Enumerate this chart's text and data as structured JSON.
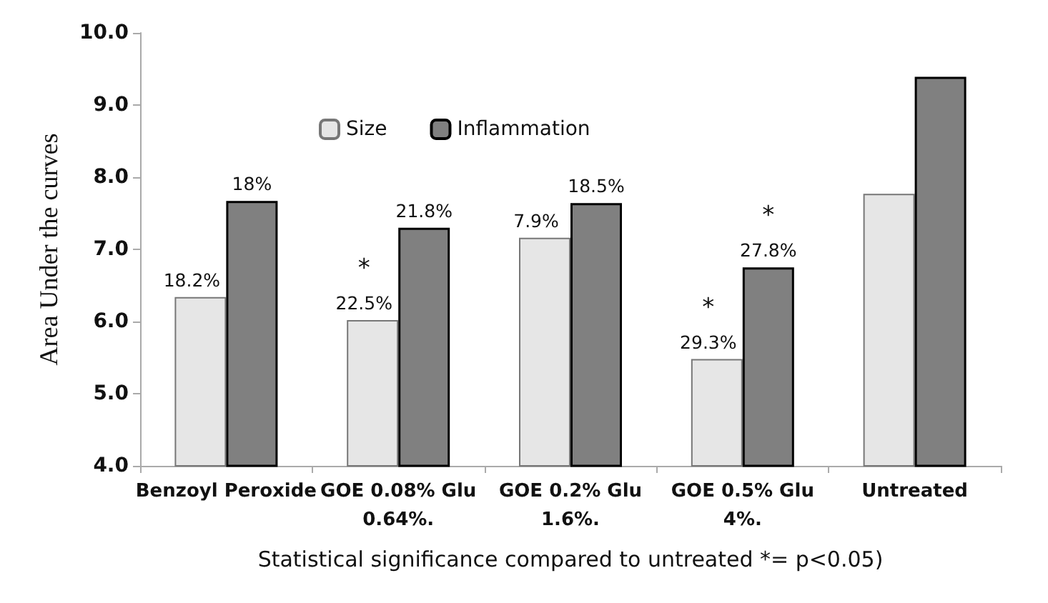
{
  "chart_data": {
    "type": "bar",
    "ylabel": "Area Under the curves",
    "xlabel": "Statistical significance compared to untreated *= p<0.05)",
    "categories": [
      "Benzoyl Peroxide",
      "GOE 0.08% Glu\n0.64%.",
      "GOE 0.2% Glu\n1.6%.",
      "GOE 0.5% Glu\n4%.",
      "Untreated"
    ],
    "series": [
      {
        "name": "Size",
        "color": "#e6e6e6",
        "values": [
          6.34,
          6.02,
          7.16,
          5.48,
          7.77
        ]
      },
      {
        "name": "Inflammation",
        "color": "#808080",
        "values": [
          7.67,
          7.3,
          7.64,
          6.75,
          9.39
        ]
      }
    ],
    "annotations": [
      {
        "text": "18.2%",
        "x": "Benzoyl Peroxide",
        "y": 6.34
      },
      {
        "text": "18%",
        "x": "Benzoyl Peroxide",
        "y": 7.67
      },
      {
        "text": "22.5%",
        "x": "GOE 0.08% Glu\n0.64%.",
        "y": 6.02
      },
      {
        "text": "*",
        "x": "GOE 0.08% Glu\n0.64%.",
        "y": 6.02
      },
      {
        "text": "21.8%",
        "x": "GOE 0.08% Glu\n0.64%.",
        "y": 7.3
      },
      {
        "text": "7.9%",
        "x": "GOE 0.2% Glu\n1.6%.",
        "y": 7.16
      },
      {
        "text": "18.5%",
        "x": "GOE 0.2% Glu\n1.6%.",
        "y": 7.64
      },
      {
        "text": "29.3%",
        "x": "GOE 0.5% Glu\n4%.",
        "y": 5.48
      },
      {
        "text": "*",
        "x": "GOE 0.5% Glu\n4%.",
        "y": 5.48
      },
      {
        "text": "27.8%",
        "x": "GOE 0.5% Glu\n4%.",
        "y": 6.75
      },
      {
        "text": "*",
        "x": "GOE 0.5% Glu\n4%.",
        "y": 6.75
      }
    ],
    "ylim": [
      4,
      10
    ],
    "yticks": [
      {
        "value": 4,
        "label": "4.0"
      },
      {
        "value": 5,
        "label": "5.0"
      },
      {
        "value": 6,
        "label": "6.0"
      },
      {
        "value": 7,
        "label": "7.0"
      },
      {
        "value": 8,
        "label": "8.0"
      },
      {
        "value": 9,
        "label": "9.0"
      },
      {
        "value": 10,
        "label": "10.0"
      }
    ],
    "grid": false,
    "legend": "top"
  }
}
